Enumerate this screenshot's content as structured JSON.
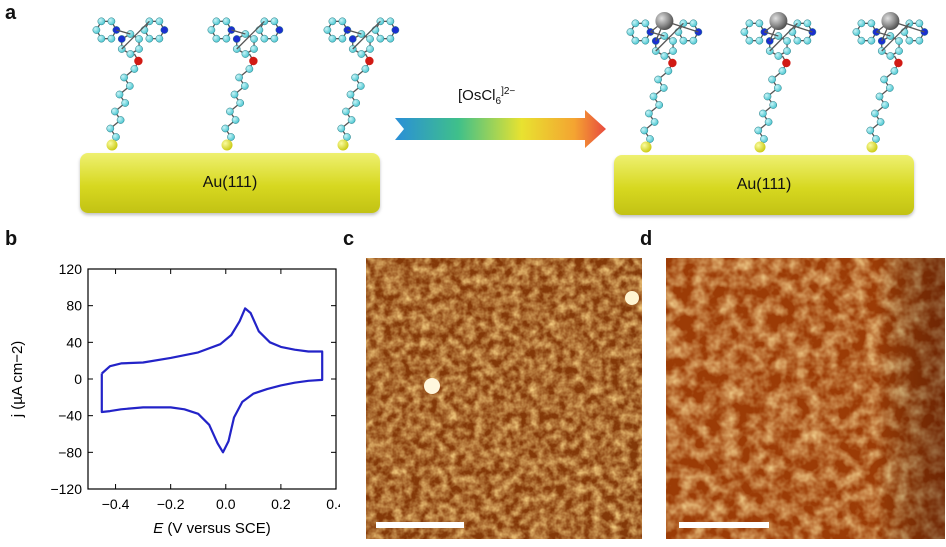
{
  "panels": {
    "a": "a",
    "b": "b",
    "c": "c",
    "d": "d"
  },
  "substrate_label": "Au(111)",
  "reagent": {
    "main": "[OsCl",
    "sub": "6",
    "sup": "]2−"
  },
  "colors": {
    "carbon": "#5ed2dc",
    "nitrogen": "#1b2fd0",
    "oxygen": "#d11a14",
    "sulfur": "#e3e41b",
    "osmium": "#8a8a8a",
    "cv_line": "#2323c8"
  },
  "chart_data": {
    "type": "line",
    "title": "",
    "xlabel": "E (V versus SCE)",
    "ylabel": "j (µA cm−2)",
    "xlim": [
      -0.5,
      0.4
    ],
    "ylim": [
      -120,
      120
    ],
    "xticks": [
      "−0.4",
      "−0.2",
      "0.0",
      "0.2",
      "0.4"
    ],
    "xtick_values": [
      -0.4,
      -0.2,
      0.0,
      0.2,
      0.4
    ],
    "yticks": [
      "120",
      "80",
      "40",
      "0",
      "−40",
      "−80",
      "−120"
    ],
    "ytick_values": [
      120,
      80,
      40,
      0,
      -40,
      -80,
      -120
    ],
    "series": [
      {
        "x": [
          -0.45,
          -0.42,
          -0.38,
          -0.3,
          -0.2,
          -0.1,
          -0.02,
          0.02,
          0.05,
          0.07,
          0.09,
          0.12,
          0.16,
          0.2,
          0.25,
          0.3,
          0.35,
          0.35,
          0.3,
          0.25,
          0.2,
          0.15,
          0.1,
          0.06,
          0.03,
          0.01,
          -0.01,
          -0.03,
          -0.06,
          -0.1,
          -0.15,
          -0.2,
          -0.3,
          -0.38,
          -0.42,
          -0.45,
          -0.45
        ],
        "y": [
          6,
          14,
          17,
          18,
          23,
          29,
          38,
          48,
          63,
          77,
          72,
          52,
          40,
          35,
          32,
          30,
          30,
          -1,
          -2,
          -4,
          -7,
          -11,
          -16,
          -25,
          -42,
          -68,
          -80,
          -70,
          -50,
          -38,
          -33,
          -31,
          -31,
          -33,
          -35,
          -36,
          6
        ]
      }
    ]
  },
  "scalebars": {
    "c": "",
    "d": ""
  }
}
